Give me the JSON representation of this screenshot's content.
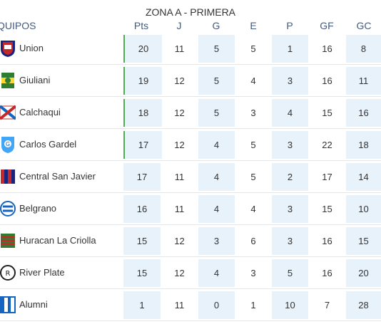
{
  "title": "ZONA A - PRIMERA",
  "headers": {
    "team": "QUIPOS",
    "pts": "Pts",
    "j": "J",
    "g": "G",
    "e": "E",
    "p": "P",
    "gf": "GF",
    "gc": "GC"
  },
  "rows": [
    {
      "team": "Union",
      "pts": "20",
      "j": "11",
      "g": "5",
      "e": "5",
      "p": "1",
      "gf": "16",
      "gc": "8",
      "logo": "union-logo-icon"
    },
    {
      "team": "Giuliani",
      "pts": "19",
      "j": "12",
      "g": "5",
      "e": "4",
      "p": "3",
      "gf": "16",
      "gc": "11",
      "logo": "giuliani-logo-icon"
    },
    {
      "team": "Calchaqui",
      "pts": "18",
      "j": "12",
      "g": "5",
      "e": "3",
      "p": "4",
      "gf": "15",
      "gc": "16",
      "logo": "calchaqui-logo-icon"
    },
    {
      "team": "Carlos Gardel",
      "pts": "17",
      "j": "12",
      "g": "4",
      "e": "5",
      "p": "3",
      "gf": "22",
      "gc": "18",
      "logo": "carlos-gardel-logo-icon"
    },
    {
      "team": "Central San Javier",
      "pts": "17",
      "j": "11",
      "g": "4",
      "e": "5",
      "p": "2",
      "gf": "17",
      "gc": "14",
      "logo": "central-san-javier-logo-icon"
    },
    {
      "team": "Belgrano",
      "pts": "16",
      "j": "11",
      "g": "4",
      "e": "4",
      "p": "3",
      "gf": "15",
      "gc": "10",
      "logo": "belgrano-logo-icon"
    },
    {
      "team": "Huracan La Criolla",
      "pts": "15",
      "j": "12",
      "g": "3",
      "e": "6",
      "p": "3",
      "gf": "16",
      "gc": "15",
      "logo": "huracan-logo-icon"
    },
    {
      "team": "River Plate",
      "pts": "15",
      "j": "12",
      "g": "4",
      "e": "3",
      "p": "5",
      "gf": "16",
      "gc": "20",
      "logo": "river-plate-logo-icon"
    },
    {
      "team": "Alumni",
      "pts": "1",
      "j": "11",
      "g": "0",
      "e": "1",
      "p": "10",
      "gf": "7",
      "gc": "28",
      "logo": "alumni-logo-icon"
    }
  ],
  "colors": {
    "shade": "#e8f2fb",
    "qualify_marker": "#4caf50",
    "header_text": "#455a7a"
  }
}
